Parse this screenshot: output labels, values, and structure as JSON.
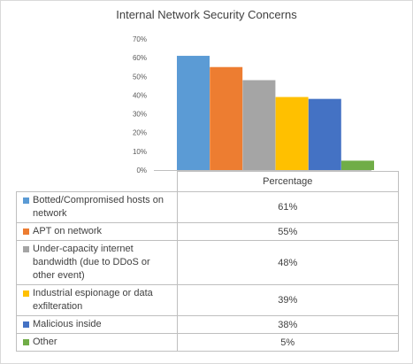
{
  "chart_data": {
    "type": "bar",
    "title": "Internal Network Security Concerns",
    "categories": [
      "Percentage"
    ],
    "series": [
      {
        "name": "Botted/Compromised hosts on network",
        "value": 61,
        "label": "61%",
        "color": "#5b9bd5"
      },
      {
        "name": "APT on network",
        "value": 55,
        "label": "55%",
        "color": "#ed7d31"
      },
      {
        "name": "Under-capacity internet bandwidth (due to DDoS or other event)",
        "value": 48,
        "label": "48%",
        "color": "#a5a5a5"
      },
      {
        "name": "Industrial espionage or data exfilteration",
        "value": 39,
        "label": "39%",
        "color": "#ffc000"
      },
      {
        "name": "Malicious inside",
        "value": 38,
        "label": "38%",
        "color": "#4472c4"
      },
      {
        "name": "Other",
        "value": 5,
        "label": "5%",
        "color": "#70ad47"
      }
    ],
    "ylim": [
      0,
      70
    ],
    "yticks": [
      "0%",
      "10%",
      "20%",
      "30%",
      "40%",
      "50%",
      "60%",
      "70%"
    ],
    "grid": false,
    "legend": "data table"
  }
}
